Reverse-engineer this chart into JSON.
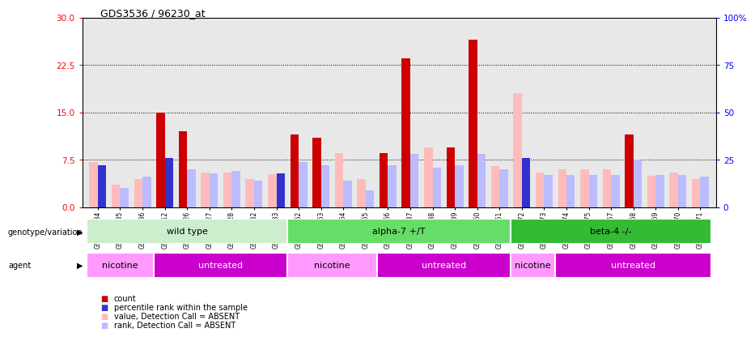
{
  "title": "GDS3536 / 96230_at",
  "samples": [
    "GSM153534",
    "GSM153535",
    "GSM153536",
    "GSM153512",
    "GSM153526",
    "GSM153527",
    "GSM153528",
    "GSM153532",
    "GSM153533",
    "GSM153562",
    "GSM153563",
    "GSM153564",
    "GSM153565",
    "GSM153566",
    "GSM153537",
    "GSM153538",
    "GSM153539",
    "GSM153560",
    "GSM153561",
    "GSM153572",
    "GSM153573",
    "GSM153574",
    "GSM153575",
    "GSM153567",
    "GSM153568",
    "GSM153569",
    "GSM153570",
    "GSM153571"
  ],
  "count_values": [
    7.2,
    3.5,
    4.5,
    15.0,
    12.0,
    5.5,
    5.5,
    4.5,
    5.2,
    11.5,
    11.0,
    8.5,
    4.5,
    8.5,
    23.5,
    9.5,
    9.5,
    26.5,
    6.5,
    18.0,
    5.5,
    6.0,
    6.0,
    6.0,
    11.5,
    5.0,
    5.5,
    4.5
  ],
  "rank_values_pct": [
    22.0,
    10.0,
    16.0,
    26.0,
    20.0,
    18.0,
    19.0,
    14.0,
    18.0,
    24.0,
    22.0,
    14.0,
    9.0,
    22.0,
    28.0,
    21.0,
    22.0,
    28.0,
    20.0,
    26.0,
    17.0,
    17.0,
    17.0,
    17.0,
    25.0,
    17.0,
    17.0,
    16.0
  ],
  "count_absent": [
    true,
    true,
    true,
    false,
    false,
    true,
    true,
    true,
    true,
    false,
    false,
    true,
    true,
    false,
    false,
    true,
    false,
    false,
    true,
    true,
    true,
    true,
    true,
    true,
    false,
    true,
    true,
    true
  ],
  "rank_absent": [
    false,
    true,
    true,
    false,
    true,
    true,
    true,
    true,
    false,
    true,
    true,
    true,
    true,
    true,
    true,
    true,
    true,
    true,
    true,
    false,
    true,
    true,
    true,
    true,
    true,
    true,
    true,
    true
  ],
  "groups": {
    "genotype": [
      {
        "label": "wild type",
        "start": 0,
        "end": 9,
        "color": "#aaddaa"
      },
      {
        "label": "alpha-7 +/T",
        "start": 9,
        "end": 19,
        "color": "#66cc66"
      },
      {
        "label": "beta-4 -/-",
        "start": 19,
        "end": 28,
        "color": "#33aa33"
      }
    ],
    "agent": [
      {
        "label": "nicotine",
        "start": 0,
        "end": 3
      },
      {
        "label": "untreated",
        "start": 3,
        "end": 9
      },
      {
        "label": "nicotine",
        "start": 9,
        "end": 13
      },
      {
        "label": "untreated",
        "start": 13,
        "end": 19
      },
      {
        "label": "nicotine",
        "start": 19,
        "end": 21
      },
      {
        "label": "untreated",
        "start": 21,
        "end": 28
      }
    ]
  },
  "ylim_left": [
    0,
    30
  ],
  "ylim_right": [
    0,
    100
  ],
  "yticks_left": [
    0,
    7.5,
    15.0,
    22.5,
    30
  ],
  "yticks_right": [
    0,
    25,
    50,
    75,
    100
  ],
  "color_count": "#cc0000",
  "color_rank": "#3333cc",
  "color_count_absent": "#ffbbbb",
  "color_rank_absent": "#bbbbff",
  "color_nicotine": "#ff99ff",
  "color_untreated": "#cc00cc",
  "color_genotype_0": "#cceecc",
  "color_genotype_1": "#66dd66",
  "color_genotype_2": "#33bb33",
  "plot_bg": "#e8e8e8"
}
